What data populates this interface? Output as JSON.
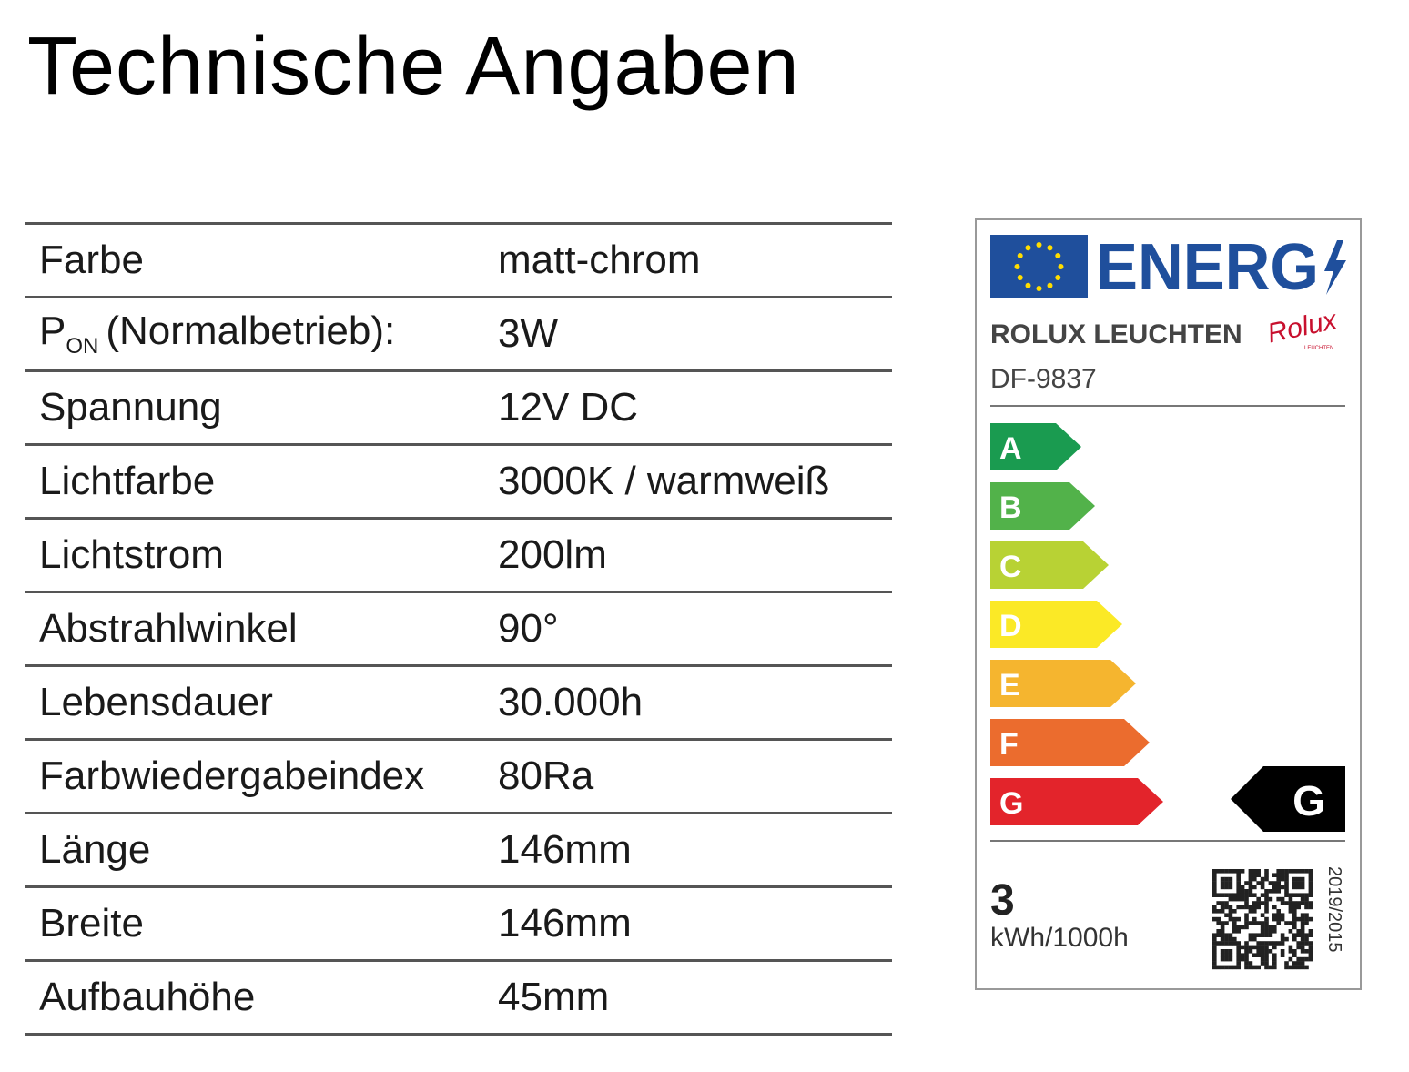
{
  "header": {
    "title": "Technische Angaben"
  },
  "table": {
    "rows": [
      {
        "label": "Farbe",
        "value": "matt-chrom"
      },
      {
        "label": {
          "symbol": "P",
          "subscript": "ON",
          "text": "(Normalbetrieb):"
        },
        "value": "3W"
      },
      {
        "label": "Spannung",
        "value": "12V DC"
      },
      {
        "label": "Lichtfarbe",
        "value": "3000K / warmweiß"
      },
      {
        "label": "Lichtstrom",
        "value": "200lm"
      },
      {
        "label": "Abstrahlwinkel",
        "value": "90°"
      },
      {
        "label": "Lebensdauer",
        "value": "30.000h"
      },
      {
        "label": "Farbwiedergabeindex",
        "value": "80Ra"
      },
      {
        "label": "Länge",
        "value": "146mm"
      },
      {
        "label": "Breite",
        "value": "146mm"
      },
      {
        "label": "Aufbauhöhe",
        "value": "45mm"
      }
    ]
  },
  "energy_label": {
    "heading": "ENERG",
    "brand": "ROLUX LEUCHTEN",
    "logo": "Rolux",
    "logo_sub": "LEUCHTEN",
    "model": "DF-9837",
    "classes": [
      {
        "letter": "A",
        "color": "#1a9b50"
      },
      {
        "letter": "B",
        "color": "#52b24a"
      },
      {
        "letter": "C",
        "color": "#b8d234"
      },
      {
        "letter": "D",
        "color": "#fbe926"
      },
      {
        "letter": "E",
        "color": "#f5b52f"
      },
      {
        "letter": "F",
        "color": "#eb6c2e"
      },
      {
        "letter": "G",
        "color": "#e3242b"
      }
    ],
    "rating": "G",
    "consumption": "3",
    "consumption_unit": "kWh/1000h",
    "regulation": "2019/2015"
  }
}
